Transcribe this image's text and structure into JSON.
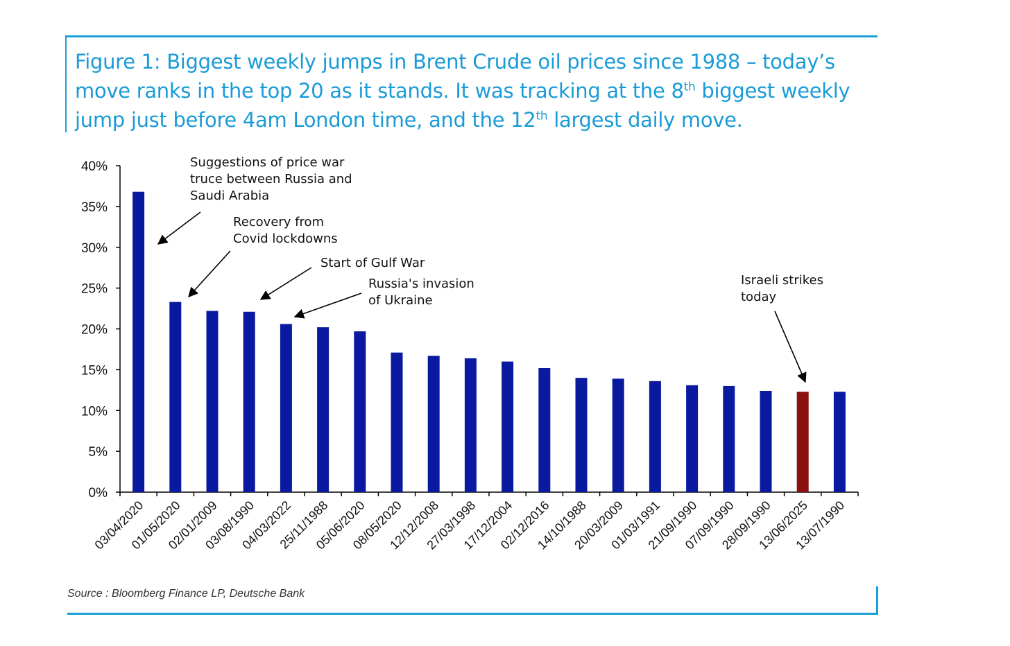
{
  "title": {
    "line1": "Figure 1: Biggest weekly jumps in Brent Crude oil prices since 1988 – today’s",
    "line2a": "move ranks in the top 20 as it stands. It was tracking at the 8",
    "line2sup": "th",
    "line2b": " biggest weekly",
    "line3a": "jump just before 4am London time, and the 12",
    "line3sup": "th",
    "line3b": " largest daily move."
  },
  "source": "Source : Bloomberg Finance LP, Deutsche Bank",
  "colors": {
    "bar": "#0a1aa0",
    "highlight": "#8b1010",
    "frame": "#1aa0d8"
  },
  "chart_data": {
    "type": "bar",
    "categories": [
      "03/04/2020",
      "01/05/2020",
      "02/01/2009",
      "03/08/1990",
      "04/03/2022",
      "25/11/1988",
      "05/06/2020",
      "08/05/2020",
      "12/12/2008",
      "27/03/1998",
      "17/12/2004",
      "02/12/2016",
      "14/10/1988",
      "20/03/2009",
      "01/03/1991",
      "21/09/1990",
      "07/09/1990",
      "28/09/1990",
      "13/06/2025",
      "13/07/1990"
    ],
    "values": [
      36.8,
      23.3,
      22.2,
      22.1,
      20.6,
      20.2,
      19.7,
      17.1,
      16.7,
      16.4,
      16.0,
      15.2,
      14.0,
      13.9,
      13.6,
      13.1,
      13.0,
      12.4,
      12.3,
      12.3
    ],
    "highlight_index": 18,
    "ylim": [
      0,
      40
    ],
    "yticks": [
      0,
      5,
      10,
      15,
      20,
      25,
      30,
      35,
      40
    ],
    "ytick_labels": [
      "0%",
      "5%",
      "10%",
      "15%",
      "20%",
      "25%",
      "30%",
      "35%",
      "40%"
    ],
    "xlabel": "",
    "ylabel": "",
    "annotations": [
      {
        "lines": [
          "Suggestions of price war",
          "truce between Russia and",
          "Saudi Arabia"
        ]
      },
      {
        "lines": [
          "Recovery from",
          "Covid lockdowns"
        ]
      },
      {
        "lines": [
          "Start of Gulf War"
        ]
      },
      {
        "lines": [
          "Russia's invasion",
          "of Ukraine"
        ]
      },
      {
        "lines": [
          "Israeli strikes",
          "today"
        ]
      }
    ]
  }
}
